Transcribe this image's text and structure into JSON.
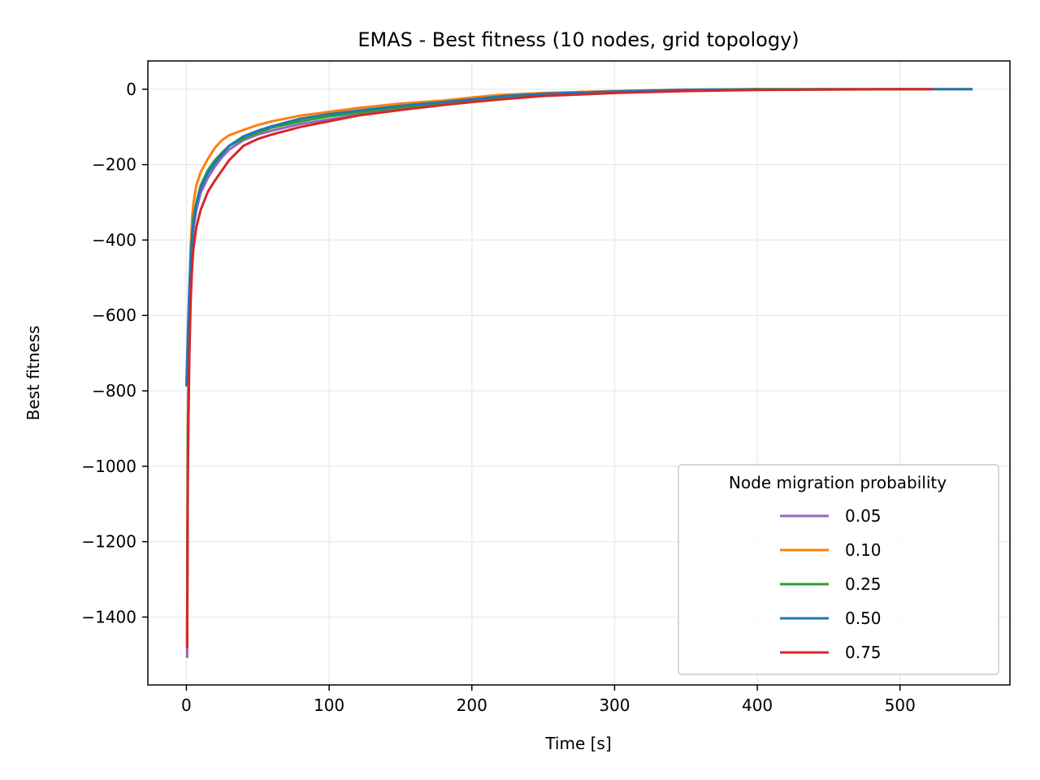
{
  "chart_data": {
    "type": "line",
    "title": "EMAS - Best fitness (10 nodes, grid topology)",
    "xlabel": "Time [s]",
    "ylabel": "Best fitness",
    "xlim": [
      -27,
      577
    ],
    "ylim": [
      -1580,
      75
    ],
    "xticks": [
      0,
      100,
      200,
      300,
      400,
      500
    ],
    "yticks": [
      0,
      -200,
      -400,
      -600,
      -800,
      -1000,
      -1200,
      -1400
    ],
    "xtick_labels": [
      "0",
      "100",
      "200",
      "300",
      "400",
      "500"
    ],
    "ytick_labels": [
      "0",
      "−200",
      "−400",
      "−600",
      "−800",
      "−1000",
      "−1200",
      "−1400"
    ],
    "grid": true,
    "legend": {
      "title": "Node migration probability",
      "placement": "lower-right"
    },
    "series": [
      {
        "name": "0.05",
        "color": "#9467bd",
        "x": [
          0.5,
          1,
          2,
          3,
          4,
          5,
          7,
          10,
          15,
          20,
          25,
          30,
          40,
          50,
          60,
          80,
          100,
          120,
          150,
          180,
          200,
          220,
          250,
          300,
          350,
          400,
          405
        ],
        "y": [
          -1505,
          -1000,
          -700,
          -520,
          -420,
          -370,
          -320,
          -275,
          -235,
          -205,
          -180,
          -160,
          -135,
          -120,
          -110,
          -92,
          -80,
          -68,
          -52,
          -38,
          -30,
          -20,
          -10,
          -5,
          -1,
          0,
          0
        ]
      },
      {
        "name": "0.10",
        "color": "#ff7f0e",
        "x": [
          0.5,
          1,
          2,
          3,
          4,
          5,
          7,
          10,
          15,
          20,
          25,
          30,
          40,
          50,
          60,
          80,
          100,
          120,
          150,
          180,
          200,
          220,
          250,
          300,
          350,
          400,
          450,
          500,
          550
        ],
        "y": [
          -1450,
          -900,
          -600,
          -420,
          -340,
          -300,
          -255,
          -220,
          -185,
          -155,
          -135,
          -122,
          -108,
          -95,
          -85,
          -70,
          -60,
          -50,
          -38,
          -30,
          -22,
          -15,
          -10,
          -5,
          -2,
          -1,
          0,
          0,
          0
        ]
      },
      {
        "name": "0.25",
        "color": "#2ca02c",
        "x": [
          0.5,
          1,
          2,
          3,
          4,
          5,
          7,
          10,
          15,
          20,
          25,
          30,
          40,
          50,
          60,
          80,
          100,
          120,
          150,
          180,
          200,
          220,
          250,
          300,
          350,
          400,
          448
        ],
        "y": [
          -1460,
          -920,
          -620,
          -450,
          -380,
          -340,
          -300,
          -255,
          -215,
          -188,
          -168,
          -150,
          -130,
          -115,
          -102,
          -85,
          -72,
          -62,
          -48,
          -37,
          -30,
          -22,
          -14,
          -6,
          -2,
          0,
          0
        ]
      },
      {
        "name": "0.50",
        "color": "#1f77b4",
        "x": [
          0,
          1,
          2,
          3,
          4,
          5,
          7,
          10,
          15,
          20,
          25,
          30,
          40,
          50,
          60,
          80,
          100,
          120,
          150,
          180,
          200,
          220,
          250,
          300,
          350,
          400,
          450,
          500,
          550
        ],
        "y": [
          -785,
          -650,
          -530,
          -440,
          -390,
          -350,
          -305,
          -262,
          -222,
          -195,
          -172,
          -150,
          -125,
          -110,
          -98,
          -78,
          -66,
          -57,
          -44,
          -34,
          -27,
          -19,
          -12,
          -6,
          -2,
          -1,
          0,
          0,
          0
        ]
      },
      {
        "name": "0.75",
        "color": "#d62728",
        "x": [
          0.5,
          1,
          2,
          3,
          4,
          5,
          7,
          10,
          15,
          20,
          25,
          30,
          40,
          50,
          60,
          80,
          100,
          120,
          150,
          180,
          200,
          220,
          250,
          300,
          350,
          400,
          450,
          500,
          522
        ],
        "y": [
          -1480,
          -1000,
          -720,
          -560,
          -470,
          -420,
          -365,
          -320,
          -272,
          -242,
          -215,
          -188,
          -150,
          -132,
          -120,
          -100,
          -85,
          -70,
          -55,
          -42,
          -34,
          -27,
          -18,
          -10,
          -5,
          -2,
          -1,
          0,
          0
        ]
      }
    ]
  }
}
